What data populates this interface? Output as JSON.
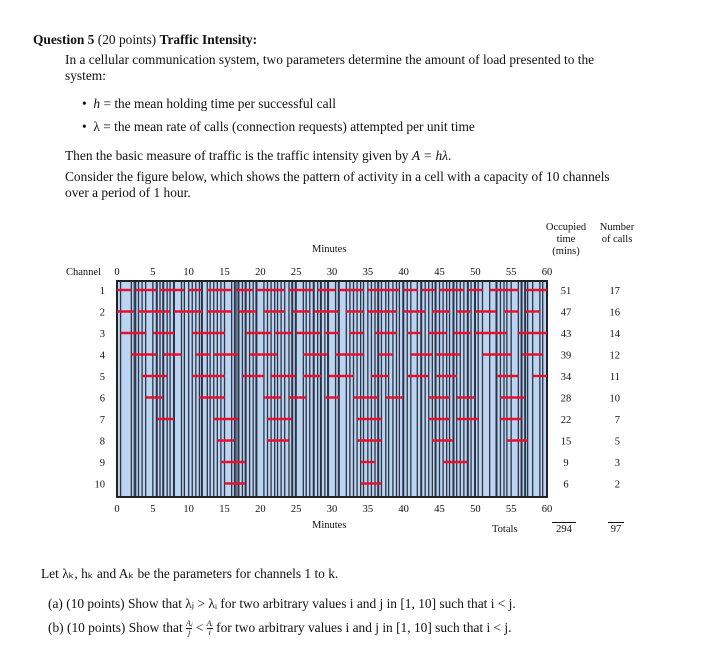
{
  "question": {
    "number": "Question 5",
    "points": "(20 points)",
    "title": "Traffic Intensity:",
    "intro_line1": "In a cellular communication system, two parameters determine the amount of load presented to the",
    "intro_line2": "system:",
    "bullets": [
      {
        "var": "h",
        "text": " = the mean holding time per successful call"
      },
      {
        "var": "λ",
        "text": " = the mean rate of calls (connection requests) attempted per unit time"
      }
    ],
    "traffic_text": "Then the basic measure of traffic is the traffic intensity given by ",
    "traffic_formula": "A = hλ",
    "traffic_end": ".",
    "consider_line1": "Consider the figure below, which shows the pattern of activity in a cell with a capacity of 10 channels",
    "consider_line2": "over a period of 1 hour.",
    "let_text": "Let λₖ, hₖ and Aₖ be the parameters for channels 1 to k.",
    "part_a": {
      "label": "(a)",
      "text": "(10 points) Show that λⱼ > λᵢ for two arbitrary values i and j in [1, 10] such that i < j."
    },
    "part_b": {
      "label": "(b)",
      "prefix": "(10 points) Show that",
      "frac1_num": "Aⱼ",
      "frac1_den": "j",
      "op": "<",
      "frac2_num": "Aᵢ",
      "frac2_den": "i",
      "suffix": "for two arbitrary values i and j in [1, 10] such that i < j."
    }
  },
  "chart_data": {
    "type": "timeline",
    "xlabel": "Minutes",
    "ylabel": "Channel",
    "xlim": [
      0,
      60
    ],
    "xticks": [
      "0",
      "5",
      "10",
      "15",
      "20",
      "25",
      "30",
      "35",
      "40",
      "45",
      "50",
      "55",
      "60"
    ],
    "colors": {
      "background": "#bcd4f0",
      "call": "#e8112d",
      "divider": "#2b3548"
    },
    "columns": {
      "occupied": "Occupied time (mins)",
      "occupied_lines": [
        "Occupied",
        "time",
        "(mins)"
      ],
      "calls_lines": [
        "Number",
        "of calls"
      ]
    },
    "totals_label": "Totals",
    "total_occupied": "294",
    "total_calls": "97",
    "channels": [
      {
        "channel": "1",
        "occupied": "51",
        "calls": "17",
        "segments": [
          [
            0,
            2
          ],
          [
            2.6,
            5.5
          ],
          [
            6,
            9.4
          ],
          [
            10,
            11.8
          ],
          [
            12.6,
            16
          ],
          [
            16.6,
            19
          ],
          [
            19.5,
            23.4
          ],
          [
            24,
            27.4
          ],
          [
            28,
            30.5
          ],
          [
            31,
            34.4
          ],
          [
            35,
            39.4
          ],
          [
            40,
            41.9
          ],
          [
            42.5,
            44.4
          ],
          [
            45,
            48.4
          ],
          [
            49,
            51
          ],
          [
            52,
            56
          ],
          [
            57,
            60
          ]
        ]
      },
      {
        "channel": "2",
        "occupied": "47",
        "calls": "16",
        "segments": [
          [
            0,
            2.4
          ],
          [
            3,
            7.4
          ],
          [
            8,
            11.9
          ],
          [
            12.6,
            16
          ],
          [
            17,
            19.4
          ],
          [
            20.5,
            23.4
          ],
          [
            24.5,
            26.9
          ],
          [
            27.5,
            30.9
          ],
          [
            32,
            34.4
          ],
          [
            35,
            39
          ],
          [
            40,
            43
          ],
          [
            44,
            46.4
          ],
          [
            47.4,
            49.4
          ],
          [
            50,
            52.9
          ],
          [
            54,
            56
          ],
          [
            57,
            59
          ]
        ]
      },
      {
        "channel": "3",
        "occupied": "43",
        "calls": "14",
        "segments": [
          [
            0.5,
            4
          ],
          [
            5,
            8
          ],
          [
            10.5,
            15
          ],
          [
            18,
            21.5
          ],
          [
            22,
            24.4
          ],
          [
            25,
            28.4
          ],
          [
            29,
            31
          ],
          [
            32.5,
            34.4
          ],
          [
            36,
            39
          ],
          [
            40.5,
            42.4
          ],
          [
            43.5,
            46
          ],
          [
            47,
            49.4
          ],
          [
            50,
            54.4
          ],
          [
            56,
            60
          ]
        ]
      },
      {
        "channel": "4",
        "occupied": "39",
        "calls": "12",
        "segments": [
          [
            2,
            5.5
          ],
          [
            6.5,
            9
          ],
          [
            11,
            13
          ],
          [
            13.5,
            16.9
          ],
          [
            18.5,
            22.4
          ],
          [
            26,
            29.4
          ],
          [
            30.5,
            34.4
          ],
          [
            36.5,
            38.5
          ],
          [
            41,
            44
          ],
          [
            44.5,
            47.9
          ],
          [
            51,
            55
          ],
          [
            56.5,
            59.4
          ]
        ]
      },
      {
        "channel": "5",
        "occupied": "34",
        "calls": "11",
        "segments": [
          [
            3.5,
            7
          ],
          [
            10.5,
            15
          ],
          [
            17.5,
            20.5
          ],
          [
            21.5,
            24.9
          ],
          [
            26,
            28.5
          ],
          [
            29.5,
            33
          ],
          [
            35.5,
            37.9
          ],
          [
            40.5,
            43.5
          ],
          [
            44.5,
            47.4
          ],
          [
            53,
            56
          ],
          [
            58,
            60
          ]
        ]
      },
      {
        "channel": "6",
        "occupied": "28",
        "calls": "10",
        "segments": [
          [
            4,
            6.4
          ],
          [
            11.5,
            15
          ],
          [
            20.5,
            22.9
          ],
          [
            24,
            26.4
          ],
          [
            29,
            31
          ],
          [
            33,
            36.4
          ],
          [
            37.5,
            39.9
          ],
          [
            43.5,
            46.4
          ],
          [
            47.4,
            49.9
          ],
          [
            53.5,
            56.9
          ]
        ]
      },
      {
        "channel": "7",
        "occupied": "22",
        "calls": "7",
        "segments": [
          [
            5.6,
            7.9
          ],
          [
            13.5,
            16.9
          ],
          [
            21,
            24.4
          ],
          [
            33.5,
            36.9
          ],
          [
            43.5,
            46.4
          ],
          [
            47.4,
            50.4
          ],
          [
            53.5,
            56.4
          ]
        ]
      },
      {
        "channel": "8",
        "occupied": "15",
        "calls": "5",
        "segments": [
          [
            14,
            16.4
          ],
          [
            21,
            24
          ],
          [
            33.5,
            36.9
          ],
          [
            44,
            46.9
          ],
          [
            54.4,
            57.3
          ]
        ]
      },
      {
        "channel": "9",
        "occupied": "9",
        "calls": "3",
        "segments": [
          [
            14.5,
            17.9
          ],
          [
            34,
            36
          ],
          [
            45.5,
            48.9
          ]
        ]
      },
      {
        "channel": "10",
        "occupied": "6",
        "calls": "2",
        "segments": [
          [
            15,
            17.9
          ],
          [
            34,
            36.9
          ]
        ]
      }
    ]
  }
}
